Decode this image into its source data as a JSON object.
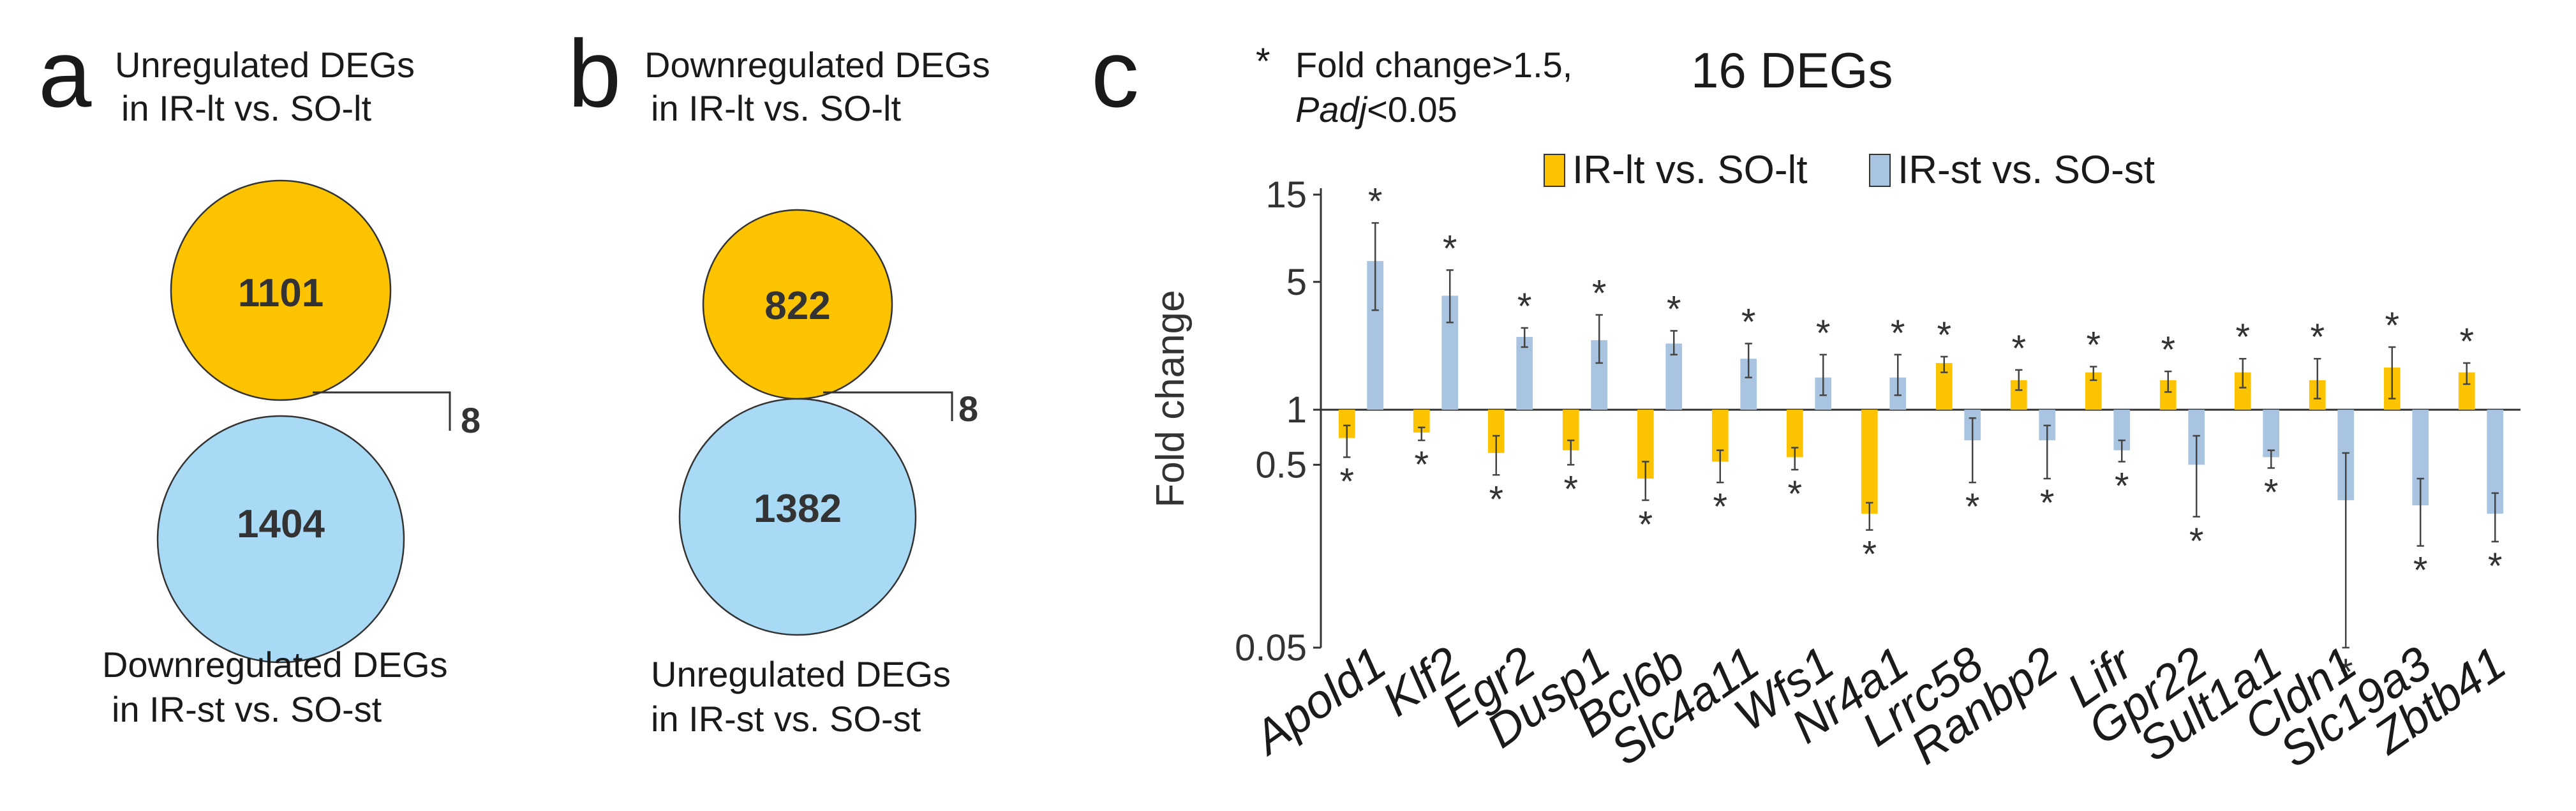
{
  "panel_a": {
    "letter": "a",
    "top_caption": [
      "Unregulated DEGs",
      "in IR-lt vs. SO-lt"
    ],
    "bottom_caption": [
      "Downregulated DEGs",
      "in IR-st vs. SO-st"
    ],
    "top_circle": {
      "value": "1101",
      "color": "#fcc400"
    },
    "bottom_circle": {
      "value": "1404",
      "color": "#a9daf5"
    },
    "overlap": "8"
  },
  "panel_b": {
    "letter": "b",
    "top_caption": [
      "Downregulated DEGs",
      "in IR-lt vs. SO-lt"
    ],
    "bottom_caption": [
      "Unregulated DEGs",
      "in IR-st vs. SO-st"
    ],
    "top_circle": {
      "value": "822",
      "color": "#fcc400"
    },
    "bottom_circle": {
      "value": "1382",
      "color": "#a9daf5"
    },
    "overlap": "8"
  },
  "panel_c": {
    "letter": "c",
    "title": "16 DEGs",
    "note_star": "*",
    "note_line1": "Fold change>1.5,",
    "note_line2_italic": "Padj",
    "note_line2_rest": "<0.05"
  },
  "chart_data": {
    "type": "bar",
    "title": "16 DEGs",
    "ylabel": "Fold change",
    "yscale": "log",
    "ylim": [
      0.05,
      15
    ],
    "yticks": [
      0.05,
      0.5,
      1,
      5,
      15
    ],
    "ytick_labels": [
      "0.05",
      "0.5",
      "1",
      "5",
      "15"
    ],
    "baseline": 1,
    "categories": [
      "Apold1",
      "Klf2",
      "Egr2",
      "Dusp1",
      "Bcl6b",
      "Slc4a11",
      "Wfs1",
      "Nr4a1",
      "Lrrc58",
      "Ranbp2",
      "Lifr",
      "Gpr22",
      "Sult1a1",
      "Cldn1",
      "Slc19a3",
      "Zbtb41"
    ],
    "series": [
      {
        "name": "IR-lt vs. SO-lt",
        "color": "#fcc400",
        "values": [
          0.7,
          0.75,
          0.58,
          0.6,
          0.42,
          0.52,
          0.55,
          0.27,
          1.8,
          1.45,
          1.6,
          1.45,
          1.6,
          1.45,
          1.7,
          1.6
        ],
        "err_low": [
          0.55,
          0.68,
          0.44,
          0.5,
          0.32,
          0.4,
          0.47,
          0.22,
          1.6,
          1.28,
          1.45,
          1.25,
          1.32,
          1.15,
          1.15,
          1.38
        ],
        "err_high": [
          0.82,
          0.8,
          0.72,
          0.68,
          0.52,
          0.6,
          0.62,
          0.31,
          1.95,
          1.65,
          1.72,
          1.62,
          1.9,
          1.9,
          2.2,
          1.8
        ],
        "significant": [
          true,
          true,
          true,
          true,
          true,
          true,
          true,
          true,
          true,
          true,
          true,
          true,
          true,
          true,
          true,
          true
        ]
      },
      {
        "name": "IR-st vs. SO-st",
        "color": "#a8c4e0",
        "values": [
          6.5,
          4.2,
          2.5,
          2.4,
          2.3,
          1.9,
          1.5,
          1.5,
          0.68,
          0.68,
          0.6,
          0.5,
          0.55,
          0.32,
          0.3,
          0.27
        ],
        "err_low": [
          3.5,
          3.0,
          2.2,
          1.8,
          2.0,
          1.5,
          1.2,
          1.2,
          0.4,
          0.42,
          0.52,
          0.26,
          0.48,
          0.05,
          0.18,
          0.19
        ],
        "err_high": [
          10.5,
          5.8,
          2.8,
          3.3,
          2.7,
          2.3,
          2.0,
          2.0,
          0.9,
          0.82,
          0.68,
          0.72,
          0.6,
          0.58,
          0.42,
          0.35
        ],
        "significant": [
          true,
          true,
          true,
          true,
          true,
          true,
          true,
          true,
          true,
          true,
          true,
          true,
          true,
          true,
          true,
          true
        ]
      }
    ],
    "legend": [
      "IR-lt vs. SO-lt",
      "IR-st vs. SO-st"
    ],
    "legend_position": "top-right"
  }
}
